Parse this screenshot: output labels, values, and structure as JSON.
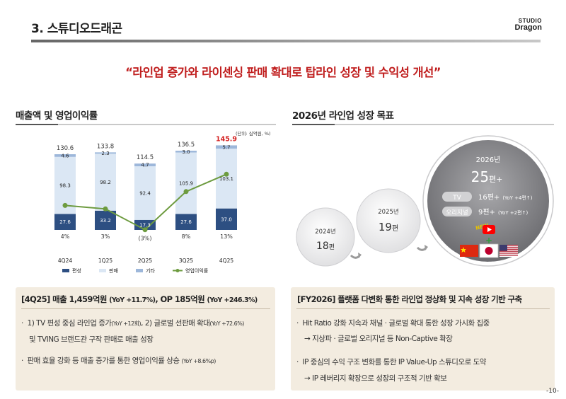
{
  "header": {
    "title": "3. 스튜디오드래곤",
    "logo_line1": "STUDIO",
    "logo_line2": "Dragon"
  },
  "headline": "“라인업 증가와 라이센싱 판매 확대로 탑라인 성장 및 수익성 개선”",
  "left": {
    "title": "매출액 및 영업이익률",
    "unit": "(단위: 십억원, %)",
    "box": {
      "title_a": "[4Q25] 매출 1,459억원 ",
      "title_a_sm": "(YoY +11.7%)",
      "title_b": ", OP 185억원 ",
      "title_b_sm": "(YoY +246.3%)",
      "b1_a": "1) TV 편성 중심 라인업 증가",
      "b1_a_sm": "(YoY +12회)",
      "b1_b": ", 2) 글로벌 선판매 확대",
      "b1_b_sm": "(YoY +72.6%)",
      "b1_c": "및 TVING 브랜드관 구작 판매로 매출 성장",
      "b2_a": "판매 효율 강화 등 매출 증가를 통한 영업이익률 상승 ",
      "b2_a_sm": "(YoY +8.6%p)"
    }
  },
  "right": {
    "title": "2026년 라인업 성장 목표",
    "c2024": {
      "year": "2024년",
      "value": "18",
      "unit": "편"
    },
    "c2025": {
      "year": "2025년",
      "value": "19",
      "unit": "편"
    },
    "c2026": {
      "year": "2026년",
      "value": "25",
      "unit": "편+"
    },
    "tv": {
      "label": "TV",
      "value": "16편+",
      "sub": "(YoY +4편↑)"
    },
    "orig": {
      "label": "오리지널",
      "value": "9편+",
      "sub": "(YoY +2편↑)"
    },
    "new_label": "NEW",
    "plus": "+",
    "dots": "• • •",
    "box": {
      "title_a": "[FY2026] 플랫폼 다변화 통한 라인업 정상화 및 지속 성장 기반 구축",
      "b1": "Hit Ratio 강화 지속과 채널 · 글로벌 확대 통한 성장 가시화 집중",
      "b1_sub": "→ 지상파 · 글로벌 오리지널 등 Non-Captive 확장",
      "b2": "IP 중심의 수익 구조 변화를 통한 IP Value-Up 스튜디오로 도약",
      "b2_sub": "→ IP 레버리지 확장으로 성장의 구조적 기반 확보"
    }
  },
  "page_number": "-10-",
  "chart_data": {
    "type": "bar",
    "stacked": true,
    "categories": [
      "4Q24",
      "1Q25",
      "2Q25",
      "3Q25",
      "4Q25"
    ],
    "series": [
      {
        "name": "편성",
        "values": [
          27.6,
          33.2,
          17.3,
          27.6,
          37.0
        ],
        "color": "#2d4f82"
      },
      {
        "name": "판매",
        "values": [
          98.3,
          98.2,
          92.4,
          105.9,
          103.1
        ],
        "color": "#dbe7f4"
      },
      {
        "name": "기타",
        "values": [
          4.6,
          2.3,
          4.7,
          3.0,
          5.7
        ],
        "color": "#9db7da"
      }
    ],
    "line": {
      "name": "영업이익률",
      "values": [
        4,
        3,
        -3,
        8,
        13
      ],
      "labels": [
        "4%",
        "3%",
        "(3%)",
        "8%",
        "13%"
      ],
      "color": "#6d9b3f"
    },
    "totals": [
      "130.6",
      "133.8",
      "114.5",
      "136.5",
      "145.9"
    ],
    "highlight_total_color": "#d42020",
    "unit": "(단위: 십억원, %)"
  }
}
